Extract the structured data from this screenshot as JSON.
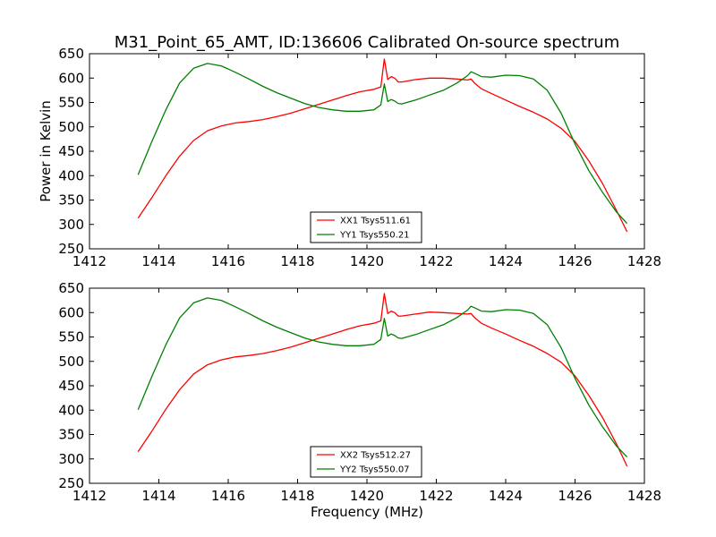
{
  "title": "M31_Point_65_AMT, ID:136606 Calibrated On-source spectrum",
  "colors": {
    "xx": "#ff0000",
    "yy": "#008000",
    "axes": "#000000",
    "background": "#ffffff"
  },
  "chart_data": [
    {
      "type": "line",
      "title": "M31_Point_65_AMT, ID:136606 Calibrated On-source spectrum",
      "xlabel": "",
      "ylabel": "Power in Kelvin",
      "xlim": [
        1412,
        1428
      ],
      "ylim": [
        250,
        650
      ],
      "xticks": [
        1412,
        1414,
        1416,
        1418,
        1420,
        1422,
        1424,
        1426,
        1428
      ],
      "yticks": [
        250,
        300,
        350,
        400,
        450,
        500,
        550,
        600,
        650
      ],
      "grid": false,
      "legend_position": "lower-center",
      "series": [
        {
          "name": "XX1 Tsys511.61",
          "color": "#ff0000",
          "x": [
            1413.4,
            1413.8,
            1414.2,
            1414.6,
            1415.0,
            1415.4,
            1415.8,
            1416.2,
            1416.6,
            1417.0,
            1417.4,
            1417.8,
            1418.2,
            1418.6,
            1419.0,
            1419.4,
            1419.8,
            1420.2,
            1420.4,
            1420.5,
            1420.6,
            1420.7,
            1420.8,
            1420.9,
            1421.0,
            1421.4,
            1421.8,
            1422.2,
            1422.6,
            1422.9,
            1423.0,
            1423.1,
            1423.3,
            1423.6,
            1424.0,
            1424.4,
            1424.8,
            1425.2,
            1425.6,
            1426.0,
            1426.4,
            1426.8,
            1427.2,
            1427.5
          ],
          "y": [
            313,
            355,
            400,
            440,
            472,
            492,
            502,
            508,
            511,
            515,
            521,
            528,
            537,
            546,
            555,
            564,
            572,
            577,
            582,
            639,
            597,
            603,
            600,
            592,
            592,
            597,
            600,
            600,
            598,
            596,
            598,
            590,
            578,
            568,
            555,
            542,
            530,
            516,
            497,
            470,
            430,
            383,
            328,
            285
          ]
        },
        {
          "name": "YY1 Tsys550.21",
          "color": "#008000",
          "x": [
            1413.4,
            1413.8,
            1414.2,
            1414.6,
            1415.0,
            1415.4,
            1415.8,
            1416.2,
            1416.6,
            1417.0,
            1417.4,
            1417.8,
            1418.2,
            1418.6,
            1419.0,
            1419.4,
            1419.8,
            1420.2,
            1420.4,
            1420.5,
            1420.6,
            1420.7,
            1420.8,
            1420.9,
            1421.0,
            1421.4,
            1421.8,
            1422.2,
            1422.6,
            1422.9,
            1423.0,
            1423.1,
            1423.3,
            1423.6,
            1424.0,
            1424.4,
            1424.8,
            1425.2,
            1425.6,
            1426.0,
            1426.4,
            1426.8,
            1427.2,
            1427.5
          ],
          "y": [
            402,
            470,
            535,
            590,
            620,
            630,
            625,
            612,
            598,
            583,
            570,
            559,
            548,
            540,
            535,
            532,
            532,
            535,
            545,
            588,
            552,
            556,
            553,
            548,
            547,
            555,
            565,
            575,
            590,
            605,
            613,
            610,
            603,
            602,
            606,
            605,
            598,
            575,
            528,
            465,
            410,
            365,
            325,
            302
          ]
        }
      ]
    },
    {
      "type": "line",
      "title": "",
      "xlabel": "Frequency (MHz)",
      "ylabel": "",
      "xlim": [
        1412,
        1428
      ],
      "ylim": [
        250,
        650
      ],
      "xticks": [
        1412,
        1414,
        1416,
        1418,
        1420,
        1422,
        1424,
        1426,
        1428
      ],
      "yticks": [
        250,
        300,
        350,
        400,
        450,
        500,
        550,
        600,
        650
      ],
      "grid": false,
      "legend_position": "lower-center",
      "series": [
        {
          "name": "XX2 Tsys512.27",
          "color": "#ff0000",
          "x": [
            1413.4,
            1413.8,
            1414.2,
            1414.6,
            1415.0,
            1415.4,
            1415.8,
            1416.2,
            1416.6,
            1417.0,
            1417.4,
            1417.8,
            1418.2,
            1418.6,
            1419.0,
            1419.4,
            1419.8,
            1420.2,
            1420.4,
            1420.5,
            1420.6,
            1420.7,
            1420.8,
            1420.9,
            1421.0,
            1421.4,
            1421.8,
            1422.2,
            1422.6,
            1422.9,
            1423.0,
            1423.1,
            1423.3,
            1423.6,
            1424.0,
            1424.4,
            1424.8,
            1425.2,
            1425.6,
            1426.0,
            1426.4,
            1426.8,
            1427.2,
            1427.5
          ],
          "y": [
            315,
            357,
            402,
            442,
            474,
            493,
            503,
            509,
            512,
            516,
            522,
            529,
            538,
            547,
            556,
            565,
            573,
            578,
            583,
            639,
            598,
            603,
            600,
            593,
            593,
            597,
            601,
            600,
            598,
            597,
            598,
            590,
            578,
            568,
            556,
            543,
            531,
            516,
            498,
            470,
            430,
            384,
            330,
            285
          ]
        },
        {
          "name": "YY2 Tsys550.07",
          "color": "#008000",
          "x": [
            1413.4,
            1413.8,
            1414.2,
            1414.6,
            1415.0,
            1415.4,
            1415.8,
            1416.2,
            1416.6,
            1417.0,
            1417.4,
            1417.8,
            1418.2,
            1418.6,
            1419.0,
            1419.4,
            1419.8,
            1420.2,
            1420.4,
            1420.5,
            1420.6,
            1420.7,
            1420.8,
            1420.9,
            1421.0,
            1421.4,
            1421.8,
            1422.2,
            1422.6,
            1422.9,
            1423.0,
            1423.1,
            1423.3,
            1423.6,
            1424.0,
            1424.4,
            1424.8,
            1425.2,
            1425.6,
            1426.0,
            1426.4,
            1426.8,
            1427.2,
            1427.5
          ],
          "y": [
            401,
            469,
            534,
            589,
            620,
            630,
            625,
            612,
            598,
            583,
            570,
            559,
            548,
            540,
            535,
            532,
            532,
            535,
            545,
            588,
            552,
            556,
            553,
            548,
            547,
            555,
            565,
            575,
            590,
            605,
            613,
            610,
            603,
            602,
            606,
            605,
            598,
            575,
            528,
            465,
            410,
            365,
            326,
            304
          ]
        }
      ]
    }
  ]
}
